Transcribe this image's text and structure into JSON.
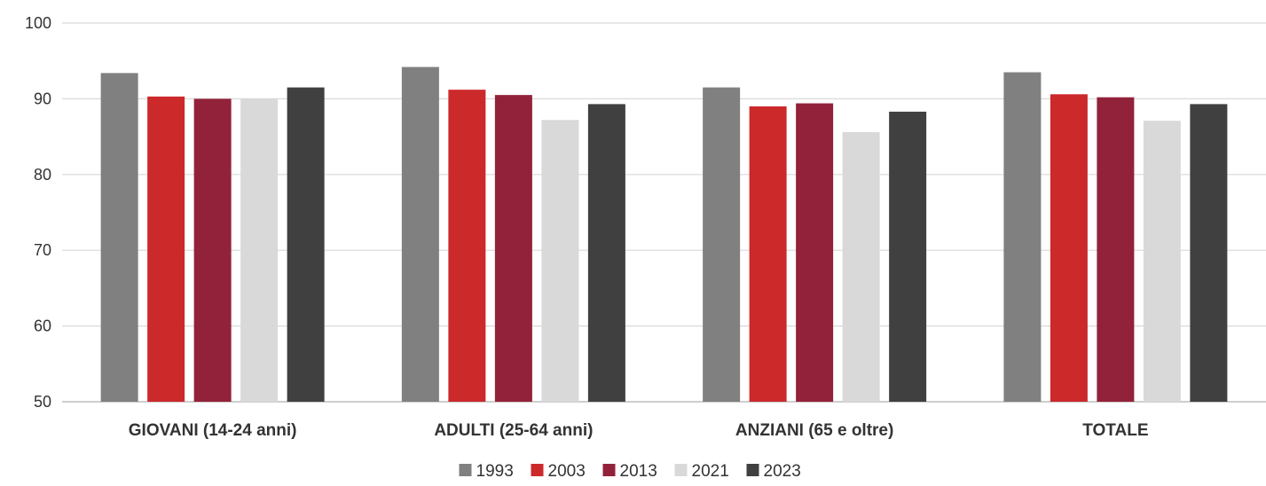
{
  "chart_data": {
    "type": "bar",
    "title": "",
    "xlabel": "",
    "ylabel": "",
    "ylim": [
      50,
      100
    ],
    "yticks": [
      50,
      60,
      70,
      80,
      90,
      100
    ],
    "grid": true,
    "legend_position": "bottom",
    "categories": [
      "GIOVANI (14-24 anni)",
      "ADULTI (25-64 anni)",
      "ANZIANI (65 e oltre)",
      "TOTALE"
    ],
    "series": [
      {
        "name": "1993",
        "color": "#808080",
        "values": [
          93.4,
          94.2,
          91.5,
          93.5
        ]
      },
      {
        "name": "2003",
        "color": "#cc292b",
        "values": [
          90.3,
          91.2,
          89.0,
          90.6
        ]
      },
      {
        "name": "2013",
        "color": "#922239",
        "values": [
          90.0,
          90.5,
          89.4,
          90.2
        ]
      },
      {
        "name": "2021",
        "color": "#d9d9d9",
        "values": [
          90.0,
          87.2,
          85.6,
          87.1
        ]
      },
      {
        "name": "2023",
        "color": "#404040",
        "values": [
          91.5,
          89.3,
          88.3,
          89.3
        ]
      }
    ]
  }
}
